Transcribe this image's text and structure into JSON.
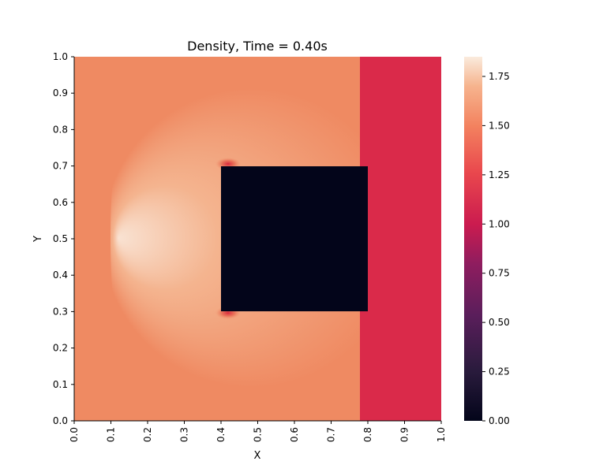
{
  "chart_data": {
    "type": "heatmap",
    "title": "Density, Time = 0.40s",
    "xlabel": "X",
    "ylabel": "Y",
    "xlim": [
      0.0,
      1.0
    ],
    "ylim": [
      0.0,
      1.0
    ],
    "x_ticks": [
      0.0,
      0.1,
      0.2,
      0.3,
      0.4,
      0.5,
      0.6,
      0.7,
      0.8,
      0.9,
      1.0
    ],
    "x_tick_labels": [
      "0.0",
      "0.1",
      "0.2",
      "0.3",
      "0.4",
      "0.5",
      "0.6",
      "0.7",
      "0.8",
      "0.9",
      "1.0"
    ],
    "y_ticks": [
      0.0,
      0.1,
      0.2,
      0.3,
      0.4,
      0.5,
      0.6,
      0.7,
      0.8,
      0.9,
      1.0
    ],
    "y_tick_labels": [
      "0.0",
      "0.1",
      "0.2",
      "0.3",
      "0.4",
      "0.5",
      "0.6",
      "0.7",
      "0.8",
      "0.9",
      "1.0"
    ],
    "colormap": "rocket",
    "value_range": [
      0.0,
      1.85
    ],
    "colorbar_ticks": [
      0.0,
      0.25,
      0.5,
      0.75,
      1.0,
      1.25,
      1.5,
      1.75
    ],
    "colorbar_tick_labels": [
      "0.00",
      "0.25",
      "0.50",
      "0.75",
      "1.00",
      "1.25",
      "1.50",
      "1.75"
    ],
    "grid": false,
    "regions": {
      "background_density": 1.38,
      "unshocked_density": 1.0,
      "unshocked_x_start": 0.78,
      "obstacle": {
        "x": [
          0.4,
          0.8
        ],
        "y": [
          0.3,
          0.7
        ],
        "density": 0.0
      },
      "bow_shock_peak_density": 1.75,
      "bow_shock_front_x_at_center": 0.1,
      "bow_shock_y_extent": [
        0.0,
        1.0
      ],
      "hot_spots": [
        {
          "x": 0.41,
          "y": 0.7,
          "density": 1.05
        },
        {
          "x": 0.41,
          "y": 0.3,
          "density": 1.05
        }
      ]
    },
    "colors": {
      "background": "#ef8a62",
      "unshocked": "#da2a4a",
      "obstacle": "#03051a",
      "shock_peak": "#f9e2d2",
      "shock_body": "#f4b48f"
    }
  }
}
